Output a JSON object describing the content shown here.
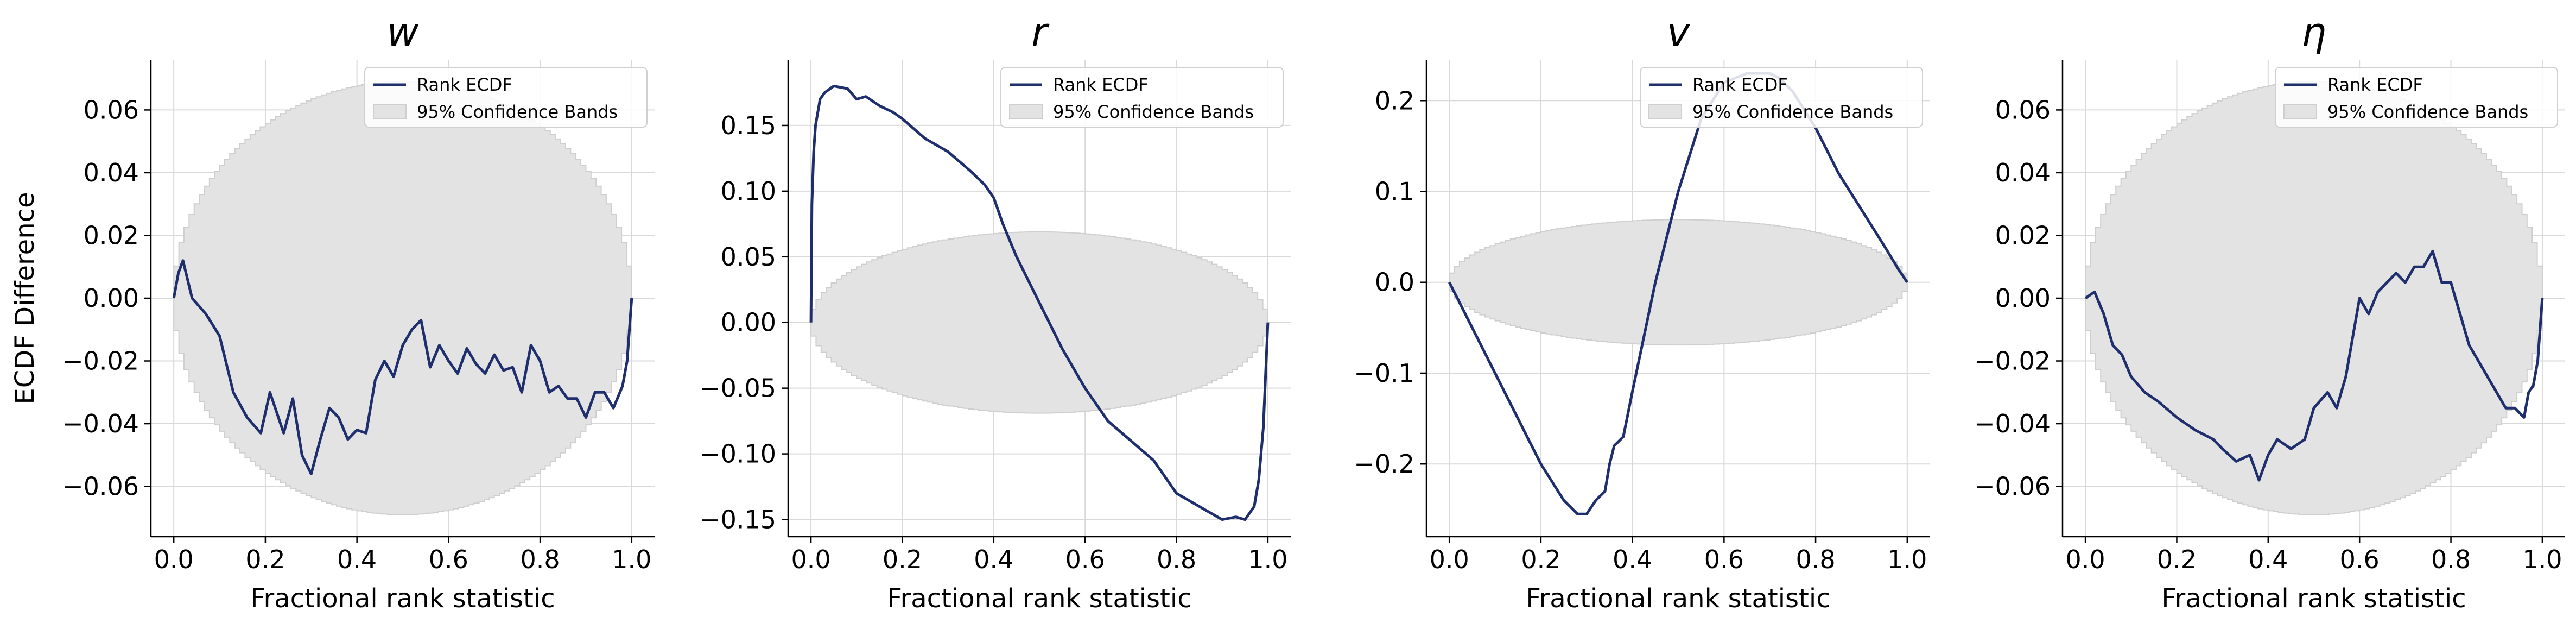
{
  "colors": {
    "ecdf_line": "#1f2f6e",
    "band_fill": "#e3e3e3",
    "band_edge": "#cfcfcf",
    "grid": "#d9d9d9",
    "axis": "#000000"
  },
  "chart_data": [
    {
      "type": "line",
      "title": "w",
      "xlabel": "Fractional rank statistic",
      "ylabel": "ECDF Difference",
      "xlim": [
        -0.05,
        1.05
      ],
      "ylim": [
        -0.076,
        0.076
      ],
      "xticks": [
        0.0,
        0.2,
        0.4,
        0.6,
        0.8,
        1.0
      ],
      "xtick_labels": [
        "0.0",
        "0.2",
        "0.4",
        "0.6",
        "0.8",
        "1.0"
      ],
      "yticks": [
        -0.06,
        -0.04,
        -0.02,
        0.0,
        0.02,
        0.04,
        0.06
      ],
      "ytick_labels": [
        "−0.06",
        "−0.04",
        "−0.02",
        "0.00",
        "0.02",
        "0.04",
        "0.06"
      ],
      "grid": true,
      "legend_position": "top-right",
      "legend": [
        "Rank ECDF",
        "95% Confidence Bands"
      ],
      "band_half_width": 0.069,
      "series": [
        {
          "name": "Rank ECDF",
          "x": [
            0.0,
            0.01,
            0.02,
            0.04,
            0.07,
            0.1,
            0.13,
            0.16,
            0.19,
            0.21,
            0.24,
            0.26,
            0.28,
            0.3,
            0.32,
            0.34,
            0.36,
            0.38,
            0.4,
            0.42,
            0.44,
            0.46,
            0.48,
            0.5,
            0.52,
            0.54,
            0.56,
            0.58,
            0.6,
            0.62,
            0.64,
            0.66,
            0.68,
            0.7,
            0.72,
            0.74,
            0.76,
            0.78,
            0.8,
            0.82,
            0.84,
            0.86,
            0.88,
            0.9,
            0.92,
            0.94,
            0.96,
            0.98,
            0.99,
            1.0
          ],
          "y": [
            0.0,
            0.008,
            0.012,
            0.0,
            -0.005,
            -0.012,
            -0.03,
            -0.038,
            -0.043,
            -0.03,
            -0.043,
            -0.032,
            -0.05,
            -0.056,
            -0.045,
            -0.035,
            -0.038,
            -0.045,
            -0.042,
            -0.043,
            -0.026,
            -0.02,
            -0.025,
            -0.015,
            -0.01,
            -0.007,
            -0.022,
            -0.015,
            -0.02,
            -0.024,
            -0.016,
            -0.021,
            -0.024,
            -0.018,
            -0.023,
            -0.022,
            -0.03,
            -0.015,
            -0.02,
            -0.03,
            -0.028,
            -0.032,
            -0.032,
            -0.038,
            -0.03,
            -0.03,
            -0.035,
            -0.028,
            -0.02,
            0.0
          ]
        }
      ]
    },
    {
      "type": "line",
      "title": "r",
      "xlabel": "Fractional rank statistic",
      "ylabel": "",
      "xlim": [
        -0.05,
        1.05
      ],
      "ylim": [
        -0.163,
        0.2
      ],
      "xticks": [
        0.0,
        0.2,
        0.4,
        0.6,
        0.8,
        1.0
      ],
      "xtick_labels": [
        "0.0",
        "0.2",
        "0.4",
        "0.6",
        "0.8",
        "1.0"
      ],
      "yticks": [
        -0.15,
        -0.1,
        -0.05,
        0.0,
        0.05,
        0.1,
        0.15
      ],
      "ytick_labels": [
        "−0.15",
        "−0.10",
        "−0.05",
        "0.00",
        "0.05",
        "0.10",
        "0.15"
      ],
      "grid": true,
      "legend_position": "top-right",
      "legend": [
        "Rank ECDF",
        "95% Confidence Bands"
      ],
      "band_half_width": 0.069,
      "series": [
        {
          "name": "Rank ECDF",
          "x": [
            0.0,
            0.002,
            0.006,
            0.01,
            0.02,
            0.03,
            0.05,
            0.08,
            0.1,
            0.12,
            0.15,
            0.18,
            0.2,
            0.25,
            0.3,
            0.35,
            0.38,
            0.4,
            0.42,
            0.45,
            0.5,
            0.55,
            0.6,
            0.65,
            0.7,
            0.75,
            0.8,
            0.85,
            0.9,
            0.93,
            0.95,
            0.97,
            0.98,
            0.99,
            0.995,
            1.0
          ],
          "y": [
            0.0,
            0.09,
            0.13,
            0.15,
            0.17,
            0.175,
            0.18,
            0.178,
            0.17,
            0.172,
            0.165,
            0.16,
            0.155,
            0.14,
            0.13,
            0.115,
            0.105,
            0.095,
            0.075,
            0.05,
            0.015,
            -0.02,
            -0.05,
            -0.075,
            -0.09,
            -0.105,
            -0.13,
            -0.14,
            -0.15,
            -0.148,
            -0.15,
            -0.14,
            -0.12,
            -0.08,
            -0.04,
            0.0
          ]
        }
      ]
    },
    {
      "type": "line",
      "title": "v",
      "xlabel": "Fractional rank statistic",
      "ylabel": "",
      "xlim": [
        -0.05,
        1.05
      ],
      "ylim": [
        -0.28,
        0.245
      ],
      "xticks": [
        0.0,
        0.2,
        0.4,
        0.6,
        0.8,
        1.0
      ],
      "xtick_labels": [
        "0.0",
        "0.2",
        "0.4",
        "0.6",
        "0.8",
        "1.0"
      ],
      "yticks": [
        -0.2,
        -0.1,
        0.0,
        0.1,
        0.2
      ],
      "ytick_labels": [
        "−0.2",
        "−0.1",
        "0.0",
        "0.1",
        "0.2"
      ],
      "grid": true,
      "legend_position": "top-right",
      "legend": [
        "Rank ECDF",
        "95% Confidence Bands"
      ],
      "band_half_width": 0.069,
      "series": [
        {
          "name": "Rank ECDF",
          "x": [
            0.0,
            0.05,
            0.1,
            0.15,
            0.2,
            0.25,
            0.28,
            0.3,
            0.32,
            0.34,
            0.35,
            0.36,
            0.38,
            0.4,
            0.45,
            0.5,
            0.55,
            0.6,
            0.65,
            0.7,
            0.72,
            0.75,
            0.8,
            0.85,
            0.9,
            0.95,
            0.98,
            1.0
          ],
          "y": [
            0.0,
            -0.05,
            -0.1,
            -0.15,
            -0.2,
            -0.24,
            -0.255,
            -0.255,
            -0.24,
            -0.23,
            -0.2,
            -0.18,
            -0.17,
            -0.12,
            0.0,
            0.1,
            0.18,
            0.22,
            0.23,
            0.23,
            0.225,
            0.21,
            0.17,
            0.12,
            0.08,
            0.04,
            0.015,
            0.0
          ]
        }
      ]
    },
    {
      "type": "line",
      "title": "η",
      "xlabel": "Fractional rank statistic",
      "ylabel": "",
      "xlim": [
        -0.05,
        1.05
      ],
      "ylim": [
        -0.076,
        0.076
      ],
      "xticks": [
        0.0,
        0.2,
        0.4,
        0.6,
        0.8,
        1.0
      ],
      "xtick_labels": [
        "0.0",
        "0.2",
        "0.4",
        "0.6",
        "0.8",
        "1.0"
      ],
      "yticks": [
        -0.06,
        -0.04,
        -0.02,
        0.0,
        0.02,
        0.04,
        0.06
      ],
      "ytick_labels": [
        "−0.06",
        "−0.04",
        "−0.02",
        "0.00",
        "0.02",
        "0.04",
        "0.06"
      ],
      "grid": true,
      "legend_position": "top-right",
      "legend": [
        "Rank ECDF",
        "95% Confidence Bands"
      ],
      "band_half_width": 0.069,
      "series": [
        {
          "name": "Rank ECDF",
          "x": [
            0.0,
            0.02,
            0.04,
            0.06,
            0.08,
            0.1,
            0.13,
            0.16,
            0.2,
            0.24,
            0.28,
            0.3,
            0.33,
            0.36,
            0.38,
            0.4,
            0.42,
            0.45,
            0.48,
            0.5,
            0.53,
            0.55,
            0.57,
            0.6,
            0.62,
            0.64,
            0.66,
            0.68,
            0.7,
            0.72,
            0.74,
            0.76,
            0.78,
            0.8,
            0.82,
            0.84,
            0.86,
            0.88,
            0.9,
            0.92,
            0.94,
            0.96,
            0.97,
            0.98,
            0.99,
            1.0
          ],
          "y": [
            0.0,
            0.002,
            -0.005,
            -0.015,
            -0.018,
            -0.025,
            -0.03,
            -0.033,
            -0.038,
            -0.042,
            -0.045,
            -0.048,
            -0.052,
            -0.05,
            -0.058,
            -0.05,
            -0.045,
            -0.048,
            -0.045,
            -0.035,
            -0.03,
            -0.035,
            -0.025,
            0.0,
            -0.005,
            0.002,
            0.005,
            0.008,
            0.005,
            0.01,
            0.01,
            0.015,
            0.005,
            0.005,
            -0.005,
            -0.015,
            -0.02,
            -0.025,
            -0.03,
            -0.035,
            -0.035,
            -0.038,
            -0.03,
            -0.028,
            -0.02,
            0.0
          ]
        }
      ]
    }
  ]
}
